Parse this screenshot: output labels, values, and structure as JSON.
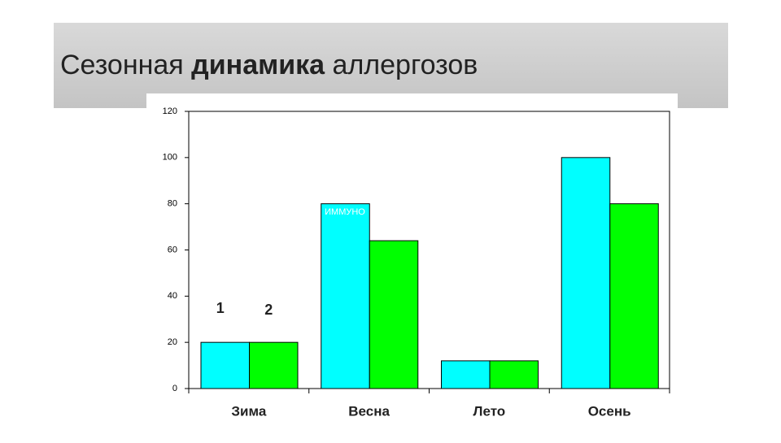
{
  "chart_data": {
    "type": "bar",
    "title_parts": [
      "Сезонная",
      "динамика",
      "аллергозов"
    ],
    "categories": [
      "Зима",
      "Весна",
      "Лето",
      "Осень"
    ],
    "series": [
      {
        "name": "1",
        "color": "#00ffff",
        "values": [
          20,
          80,
          12,
          100
        ]
      },
      {
        "name": "2",
        "color": "#00ff00",
        "values": [
          20,
          64,
          12,
          80
        ]
      }
    ],
    "annotation": "ИММУНО",
    "ylim": [
      0,
      120
    ],
    "yticks": [
      0,
      20,
      40,
      60,
      80,
      100,
      120
    ]
  }
}
